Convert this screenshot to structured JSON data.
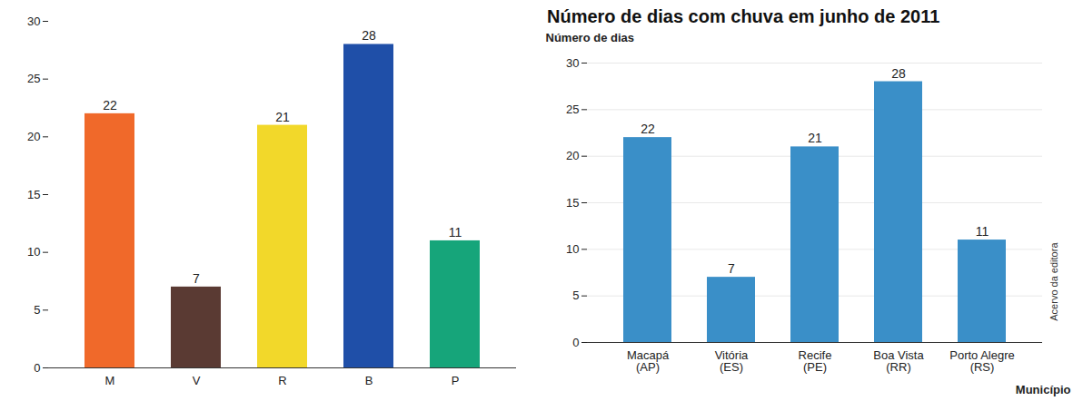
{
  "chart_data": [
    {
      "type": "bar",
      "categories": [
        "M",
        "V",
        "R",
        "B",
        "P"
      ],
      "values": [
        22,
        7,
        21,
        28,
        11
      ],
      "colors": [
        "#f0692a",
        "#5a3a33",
        "#f2d82a",
        "#1f4fa8",
        "#16a57a"
      ],
      "ylim": [
        0,
        30
      ],
      "yticks": [
        0,
        5,
        10,
        15,
        20,
        25,
        30
      ],
      "grid": false,
      "data_labels": true
    },
    {
      "type": "bar",
      "title": "Número de dias com chuva em junho de 2011",
      "y_label": "Número de dias",
      "x_label": "Município",
      "categories": [
        "Macapá (AP)",
        "Vitória (ES)",
        "Recife (PE)",
        "Boa Vista (RR)",
        "Porto Alegre (RS)"
      ],
      "values": [
        22,
        7,
        21,
        28,
        11
      ],
      "color": "#3a8fc8",
      "ylim": [
        0,
        30
      ],
      "yticks": [
        0,
        5,
        10,
        15,
        20,
        25,
        30
      ],
      "grid": true,
      "data_labels": true,
      "annotations": [
        "Acervo da editora"
      ]
    }
  ]
}
